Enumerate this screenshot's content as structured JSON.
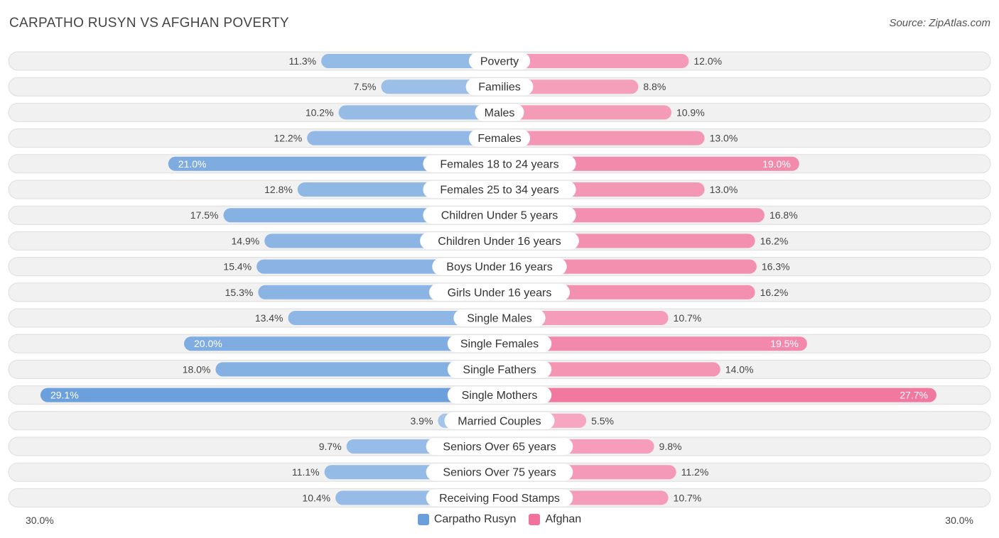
{
  "title": "CARPATHO RUSYN VS AFGHAN POVERTY",
  "source": "Source: ZipAtlas.com",
  "chart_data": {
    "type": "bar",
    "orientation": "horizontal-diverging",
    "title": "CARPATHO RUSYN VS AFGHAN POVERTY",
    "categories": [
      "Poverty",
      "Families",
      "Males",
      "Females",
      "Females 18 to 24 years",
      "Females 25 to 34 years",
      "Children Under 5 years",
      "Children Under 16 years",
      "Boys Under 16 years",
      "Girls Under 16 years",
      "Single Males",
      "Single Females",
      "Single Fathers",
      "Single Mothers",
      "Married Couples",
      "Seniors Over 65 years",
      "Seniors Over 75 years",
      "Receiving Food Stamps"
    ],
    "series": [
      {
        "name": "Carpatho Rusyn",
        "color": "#6a9fdc",
        "values": [
          11.3,
          7.5,
          10.2,
          12.2,
          21.0,
          12.8,
          17.5,
          14.9,
          15.4,
          15.3,
          13.4,
          20.0,
          18.0,
          29.1,
          3.9,
          9.7,
          11.1,
          10.4
        ],
        "labels": [
          "11.3%",
          "7.5%",
          "10.2%",
          "12.2%",
          "21.0%",
          "12.8%",
          "17.5%",
          "14.9%",
          "15.4%",
          "15.3%",
          "13.4%",
          "20.0%",
          "18.0%",
          "29.1%",
          "3.9%",
          "9.7%",
          "11.1%",
          "10.4%"
        ]
      },
      {
        "name": "Afghan",
        "color": "#f0739c",
        "values": [
          12.0,
          8.8,
          10.9,
          13.0,
          19.0,
          13.0,
          16.8,
          16.2,
          16.3,
          16.2,
          10.7,
          19.5,
          14.0,
          27.7,
          5.5,
          9.8,
          11.2,
          10.7
        ],
        "labels": [
          "12.0%",
          "8.8%",
          "10.9%",
          "13.0%",
          "19.0%",
          "13.0%",
          "16.8%",
          "16.2%",
          "16.3%",
          "16.2%",
          "10.7%",
          "19.5%",
          "14.0%",
          "27.7%",
          "5.5%",
          "9.8%",
          "11.2%",
          "10.7%"
        ]
      }
    ],
    "xlim": [
      -30,
      30
    ],
    "axis_left_label": "30.0%",
    "axis_right_label": "30.0%",
    "legend_position": "bottom-center"
  }
}
